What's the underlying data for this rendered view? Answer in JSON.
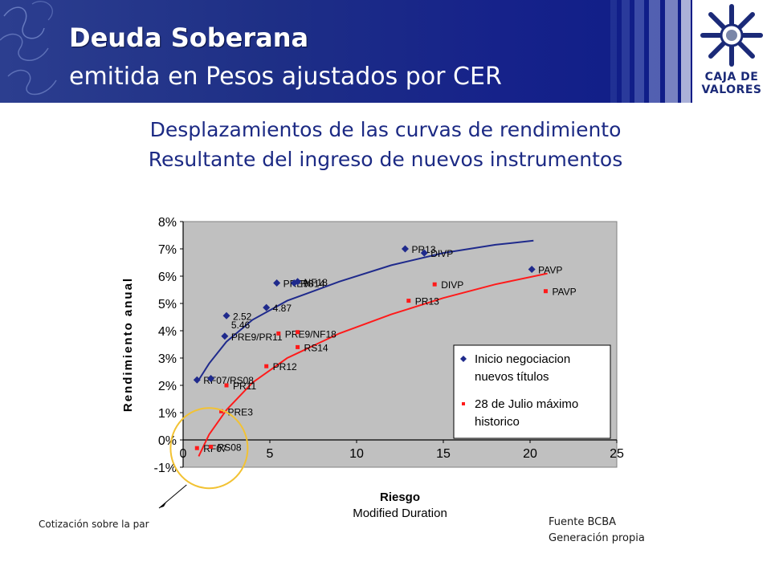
{
  "header": {
    "title": "Deuda Soberana",
    "subtitle": "emitida en Pesos ajustados por CER",
    "logo_text_line1": "CAJA DE",
    "logo_text_line2": "VALORES"
  },
  "headings": {
    "line1": "Desplazamientos de las curvas de rendimiento",
    "line2": "Resultante del ingreso de nuevos instrumentos"
  },
  "notes": {
    "par_callout": "Cotización sobre la par",
    "source_line1": "Fuente BCBA",
    "source_line2": "Generación propia"
  },
  "colors": {
    "banner": "#1e2f86",
    "series1": "#1f2a8c",
    "series2": "#ff1a1a",
    "plot_bg": "#c0c0c0",
    "circle": "#f2c233"
  },
  "chart_data": {
    "type": "scatter",
    "xlabel": "Riesgo",
    "xlabel_sub": "Modified Duration",
    "ylabel": "Rendimiento anual",
    "xlim": [
      0,
      25
    ],
    "ylim": [
      -1,
      8
    ],
    "xticks": [
      "0",
      "5",
      "10",
      "15",
      "20",
      "25"
    ],
    "yticks": [
      "-1%",
      "0%",
      "1%",
      "2%",
      "3%",
      "4%",
      "5%",
      "6%",
      "7%",
      "8%"
    ],
    "grid": false,
    "legend_position": "right",
    "series": [
      {
        "name": "Inicio negociacion nuevos títulos",
        "marker": "diamond",
        "points": [
          {
            "x": 0.8,
            "y": 2.2,
            "label": "RF07/RS08"
          },
          {
            "x": 1.6,
            "y": 2.25,
            "label": ""
          },
          {
            "x": 2.4,
            "y": 3.8,
            "label": "PRE9/PR11"
          },
          {
            "x": 2.5,
            "y": 4.55,
            "label": "2.52"
          },
          {
            "x": 4.8,
            "y": 4.85,
            "label": "4.87"
          },
          {
            "x": 5.4,
            "y": 5.75,
            "label": "PRE9"
          },
          {
            "x": 6.4,
            "y": 5.75,
            "label": "RS14"
          },
          {
            "x": 6.6,
            "y": 5.8,
            "label": "NF18"
          },
          {
            "x": 12.8,
            "y": 7.0,
            "label": "PR13"
          },
          {
            "x": 13.9,
            "y": 6.85,
            "label": "DIVP"
          },
          {
            "x": 20.1,
            "y": 6.25,
            "label": "PAVP"
          }
        ],
        "extra_labels": [
          {
            "x": 2.4,
            "y": 3.8,
            "text": "5.46"
          }
        ],
        "trend": [
          {
            "x": 0.8,
            "y": 2.1
          },
          {
            "x": 1.5,
            "y": 2.8
          },
          {
            "x": 2.5,
            "y": 3.6
          },
          {
            "x": 4,
            "y": 4.4
          },
          {
            "x": 6,
            "y": 5.1
          },
          {
            "x": 9,
            "y": 5.8
          },
          {
            "x": 12,
            "y": 6.4
          },
          {
            "x": 15,
            "y": 6.85
          },
          {
            "x": 18,
            "y": 7.15
          },
          {
            "x": 20.2,
            "y": 7.3
          }
        ]
      },
      {
        "name": "28 de Julio máximo historico",
        "marker": "square",
        "points": [
          {
            "x": 0.8,
            "y": -0.3,
            "label": "RF07"
          },
          {
            "x": 1.6,
            "y": -0.25,
            "label": "RS08"
          },
          {
            "x": 2.2,
            "y": 1.05,
            "label": "PRE3"
          },
          {
            "x": 2.5,
            "y": 2.0,
            "label": "PR11"
          },
          {
            "x": 4.8,
            "y": 2.7,
            "label": "PR12"
          },
          {
            "x": 5.5,
            "y": 3.9,
            "label": "PRE9/NF18"
          },
          {
            "x": 6.6,
            "y": 3.95,
            "label": ""
          },
          {
            "x": 6.6,
            "y": 3.4,
            "label": "RS14"
          },
          {
            "x": 13.0,
            "y": 5.1,
            "label": "PR13"
          },
          {
            "x": 14.5,
            "y": 5.7,
            "label": "DIVP"
          },
          {
            "x": 20.9,
            "y": 5.45,
            "label": "PAVP"
          }
        ],
        "trend": [
          {
            "x": 0.9,
            "y": -0.6
          },
          {
            "x": 1.5,
            "y": 0.2
          },
          {
            "x": 2.5,
            "y": 1.1
          },
          {
            "x": 4,
            "y": 2.1
          },
          {
            "x": 6,
            "y": 3.0
          },
          {
            "x": 9,
            "y": 3.9
          },
          {
            "x": 12,
            "y": 4.6
          },
          {
            "x": 15,
            "y": 5.2
          },
          {
            "x": 18,
            "y": 5.7
          },
          {
            "x": 21,
            "y": 6.1
          }
        ]
      }
    ]
  }
}
